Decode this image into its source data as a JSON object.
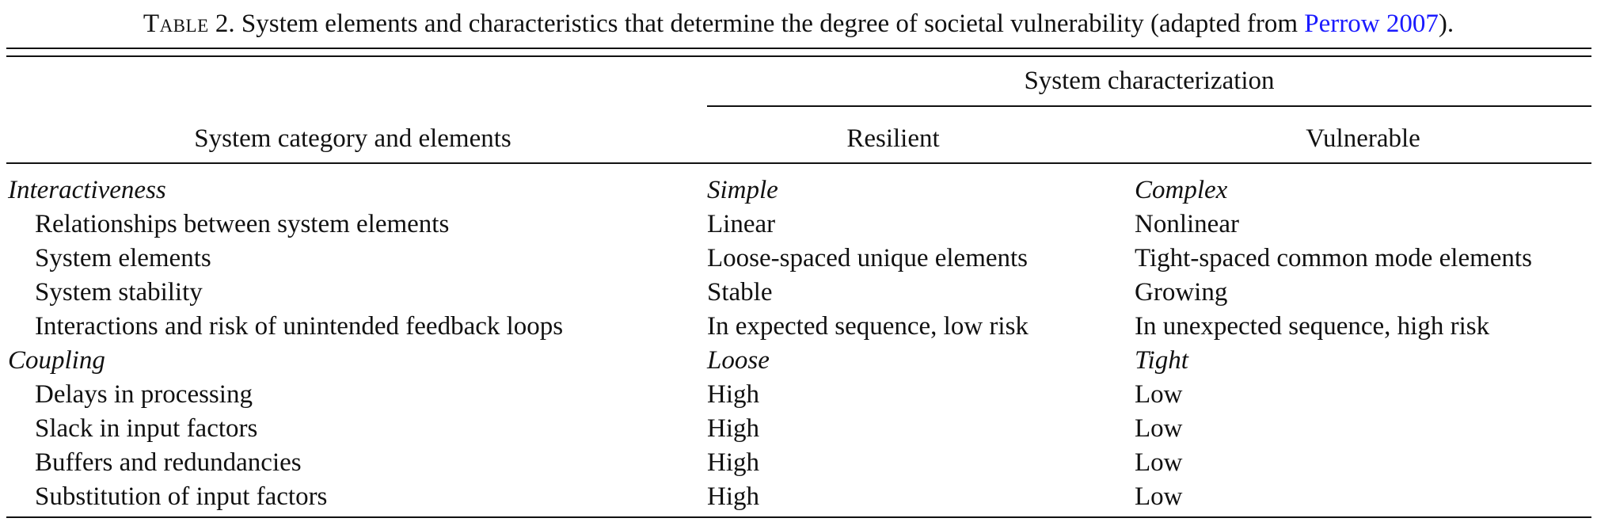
{
  "caption": {
    "label": "Table",
    "number": " 2.",
    "text": " System elements and characteristics that determine the degree of societal vulnerability (adapted from ",
    "link": "Perrow 2007",
    "tail": ")."
  },
  "header": {
    "col0": "System category and elements",
    "group": "System characterization",
    "col1": "Resilient",
    "col2": "Vulnerable"
  },
  "rows": [
    {
      "c0": "Interactiveness",
      "c1": "Simple",
      "c2": "Complex"
    },
    {
      "c0": "Relationships between system elements",
      "c1": "Linear",
      "c2": "Nonlinear"
    },
    {
      "c0": "System elements",
      "c1": "Loose-spaced unique elements",
      "c2": "Tight-spaced common mode elements"
    },
    {
      "c0": "System stability",
      "c1": "Stable",
      "c2": "Growing"
    },
    {
      "c0": "Interactions and risk of unintended feedback loops",
      "c1": "In expected sequence, low risk",
      "c2": "In unexpected sequence, high risk"
    },
    {
      "c0": "Coupling",
      "c1": "Loose",
      "c2": "Tight"
    },
    {
      "c0": "Delays in processing",
      "c1": "High",
      "c2": "Low"
    },
    {
      "c0": "Slack in input factors",
      "c1": "High",
      "c2": "Low"
    },
    {
      "c0": "Buffers and redundancies",
      "c1": "High",
      "c2": "Low"
    },
    {
      "c0": "Substitution of input factors",
      "c1": "High",
      "c2": "Low"
    }
  ]
}
